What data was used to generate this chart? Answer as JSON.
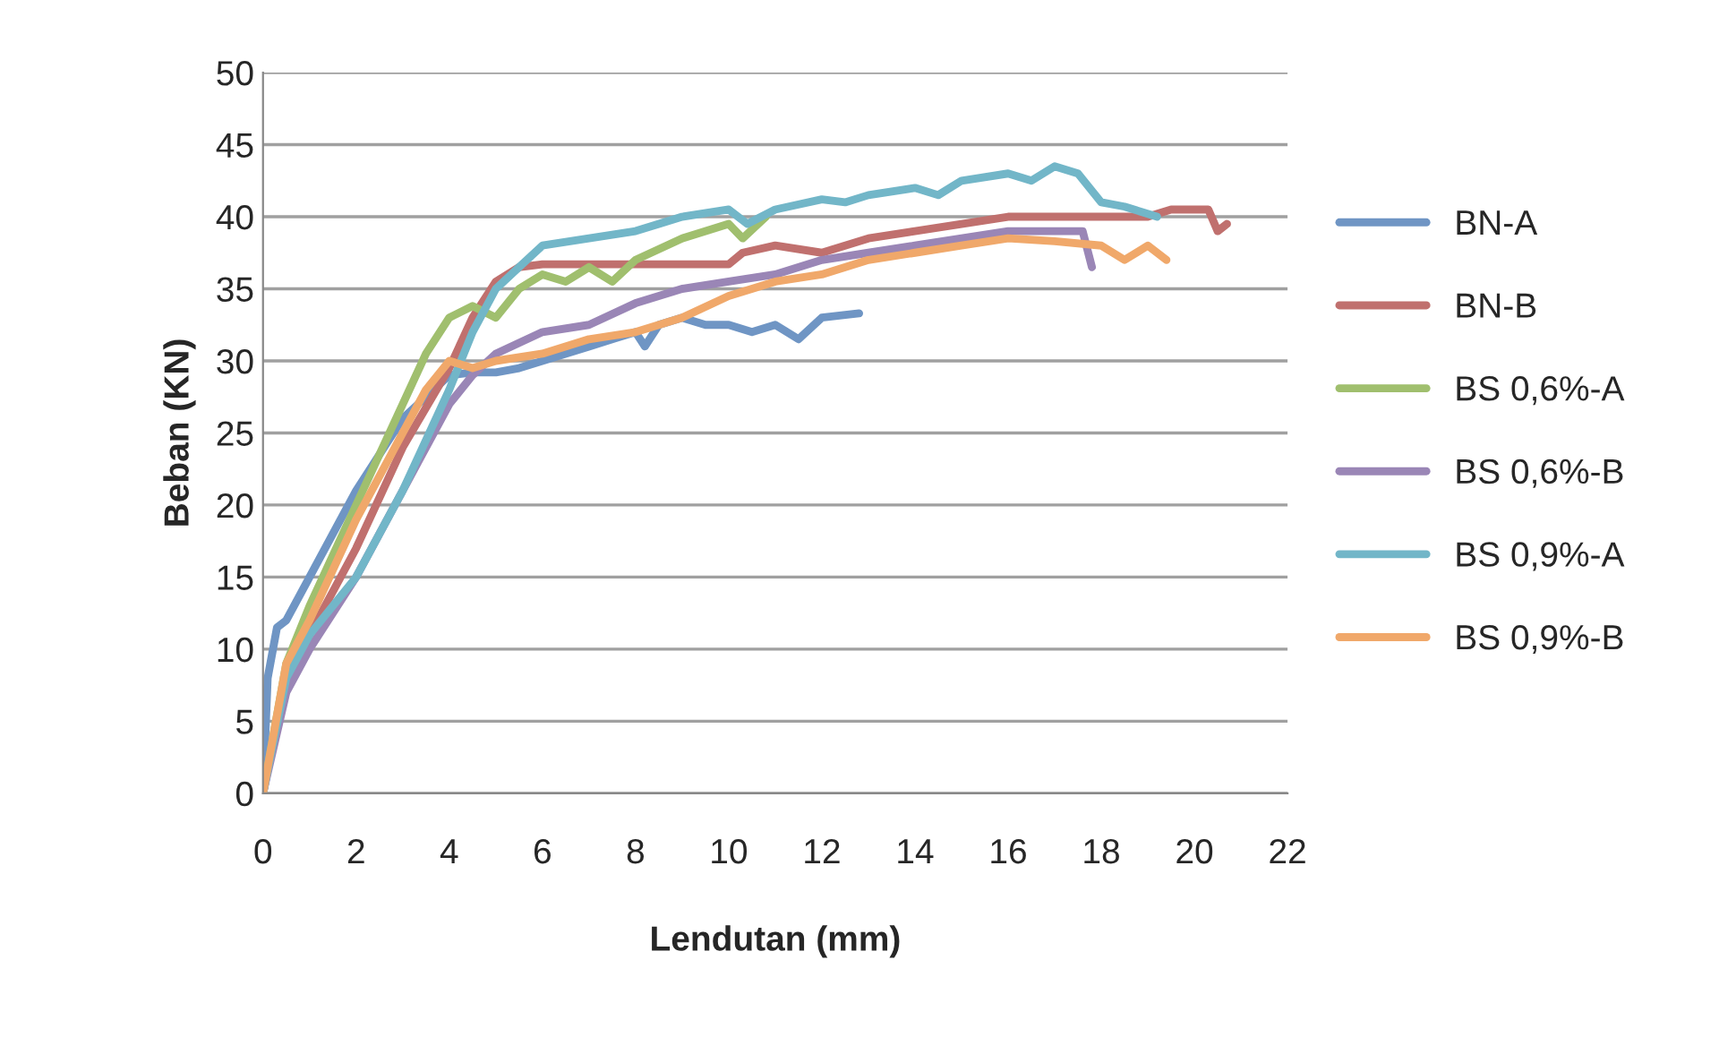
{
  "chart_data": {
    "type": "line",
    "xlabel": "Lendutan (mm)",
    "ylabel": "Beban (KN)",
    "xlim": [
      0,
      22
    ],
    "xticks": [
      0,
      2,
      4,
      6,
      8,
      10,
      12,
      14,
      16,
      18,
      20,
      22
    ],
    "ylim": [
      0,
      50
    ],
    "yticks": [
      0,
      5,
      10,
      15,
      20,
      25,
      30,
      35,
      40,
      45,
      50
    ],
    "grid": "y",
    "legend": "right",
    "marker": "none",
    "line_style": "solid",
    "series": [
      {
        "name": "BN-A",
        "color": "#6f95c4",
        "x": [
          0,
          0.1,
          0.3,
          0.5,
          1,
          1.5,
          2,
          2.5,
          3,
          3.5,
          4,
          4.5,
          5,
          5.5,
          6,
          6.5,
          7,
          7.5,
          8,
          8.2,
          8.5,
          9,
          9.5,
          10,
          10.5,
          11,
          11.5,
          12,
          12.8
        ],
        "values": [
          0,
          8,
          11.5,
          12,
          15,
          18,
          21,
          23.5,
          26,
          27.5,
          29,
          29.2,
          29.2,
          29.5,
          30,
          30.5,
          31,
          31.5,
          32,
          31,
          32.5,
          33,
          32.5,
          32.5,
          32,
          32.5,
          31.5,
          33,
          33.3
        ]
      },
      {
        "name": "BN-B",
        "color": "#c0706e",
        "x": [
          0,
          0.5,
          1,
          2,
          3,
          4,
          4.5,
          5,
          5.5,
          6,
          8,
          10,
          10.3,
          11,
          12,
          13,
          14,
          15,
          16,
          18,
          19,
          19.5,
          20.3,
          20.5,
          20.7
        ],
        "values": [
          0,
          8,
          11,
          17,
          24,
          29.5,
          33,
          35.5,
          36.5,
          36.7,
          36.7,
          36.7,
          37.5,
          38,
          37.5,
          38.5,
          39,
          39.5,
          40,
          40,
          40,
          40.5,
          40.5,
          39,
          39.5
        ]
      },
      {
        "name": "BS 0,6%-A",
        "color": "#a0bf6e",
        "x": [
          0,
          0.5,
          1,
          2,
          3,
          3.5,
          4,
          4.5,
          5,
          5.5,
          6,
          6.5,
          7,
          7.5,
          8,
          9,
          10,
          10.3,
          10.8
        ],
        "values": [
          0,
          9,
          13,
          20,
          27,
          30.5,
          33,
          33.8,
          33,
          35,
          36,
          35.5,
          36.5,
          35.5,
          37,
          38.5,
          39.5,
          38.5,
          40
        ]
      },
      {
        "name": "BS 0,6%-B",
        "color": "#9a86b6",
        "x": [
          0,
          0.5,
          1,
          1.5,
          2,
          2.5,
          3,
          3.5,
          4,
          4.5,
          5,
          6,
          7,
          8,
          9,
          10,
          11,
          12,
          13,
          14,
          15,
          16,
          17,
          17.6,
          17.8
        ],
        "values": [
          0,
          7,
          10,
          12.5,
          15,
          18,
          21,
          24,
          27,
          29,
          30.5,
          32,
          32.5,
          34,
          35,
          35.5,
          36,
          37,
          37.5,
          38,
          38.5,
          39,
          39,
          39,
          36.5
        ]
      },
      {
        "name": "BS 0,9%-A",
        "color": "#72b6c8",
        "x": [
          0,
          0.5,
          1,
          2,
          3,
          4,
          4.5,
          5,
          5.5,
          6,
          7,
          8,
          9,
          10,
          10.4,
          11,
          12,
          12.5,
          13,
          14,
          14.5,
          15,
          16,
          16.5,
          17,
          17.5,
          18,
          18.5,
          19.2
        ],
        "values": [
          0,
          8,
          11,
          15,
          21,
          28,
          32,
          35,
          36.5,
          38,
          38.5,
          39,
          40,
          40.5,
          39.5,
          40.5,
          41.2,
          41,
          41.5,
          42,
          41.5,
          42.5,
          43,
          42.5,
          43.5,
          43,
          41,
          40.7,
          40
        ]
      },
      {
        "name": "BS 0,9%-B",
        "color": "#f0a86a",
        "x": [
          0,
          0.5,
          1,
          2,
          3,
          3.5,
          4,
          4.5,
          5,
          6,
          7,
          8,
          9,
          10,
          10.5,
          11,
          12,
          13,
          14,
          15,
          16,
          17,
          18,
          18.5,
          19,
          19.4
        ],
        "values": [
          0,
          9,
          12,
          19,
          25,
          28,
          30,
          29.5,
          30,
          30.5,
          31.5,
          32,
          33,
          34.5,
          35,
          35.5,
          36,
          37,
          37.5,
          38,
          38.5,
          38.3,
          38,
          37,
          38,
          37
        ]
      }
    ]
  }
}
